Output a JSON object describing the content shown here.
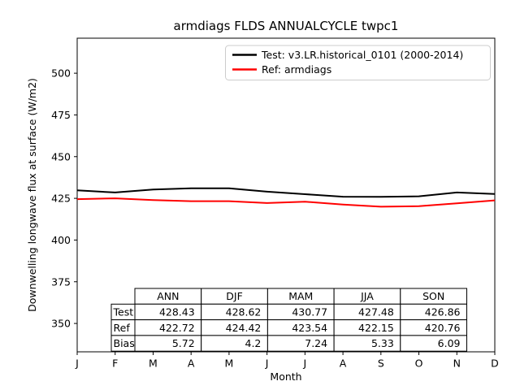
{
  "title": "armdiags FLDS ANNUALCYCLE twpc1",
  "chart_data": {
    "type": "line",
    "x": [
      "J",
      "F",
      "M",
      "A",
      "M",
      "J",
      "J",
      "A",
      "S",
      "O",
      "N",
      "D"
    ],
    "xlabel": "Month",
    "ylabel": "Downwelling longwave flux at surface (W/m2)",
    "yticks": [
      350,
      375,
      400,
      425,
      450,
      475,
      500
    ],
    "ylim": [
      333,
      521
    ],
    "grid": false,
    "legend_position": "upper right",
    "line_width": 2,
    "series": [
      {
        "name": "Test: v3.LR.historical_0101 (2000-2014)",
        "color": "#000000",
        "values": [
          429.8,
          428.5,
          430.3,
          431.0,
          431.0,
          429.0,
          427.5,
          426.0,
          425.9,
          426.2,
          428.5,
          427.6
        ]
      },
      {
        "name": "Ref: armdiags",
        "color": "#ff0000",
        "values": [
          424.5,
          425.0,
          424.0,
          423.3,
          423.3,
          422.2,
          423.0,
          421.3,
          420.0,
          420.3,
          422.0,
          423.8
        ]
      }
    ],
    "stats_table": {
      "columns": [
        "ANN",
        "DJF",
        "MAM",
        "JJA",
        "SON"
      ],
      "rows": [
        {
          "label": "Test",
          "values": [
            "428.43",
            "428.62",
            "430.77",
            "427.48",
            "426.86"
          ]
        },
        {
          "label": "Ref",
          "values": [
            "422.72",
            "424.42",
            "423.54",
            "422.15",
            "420.76"
          ]
        },
        {
          "label": "Bias",
          "values": [
            "5.72",
            "4.2",
            "7.24",
            "5.33",
            "6.09"
          ]
        }
      ]
    }
  }
}
